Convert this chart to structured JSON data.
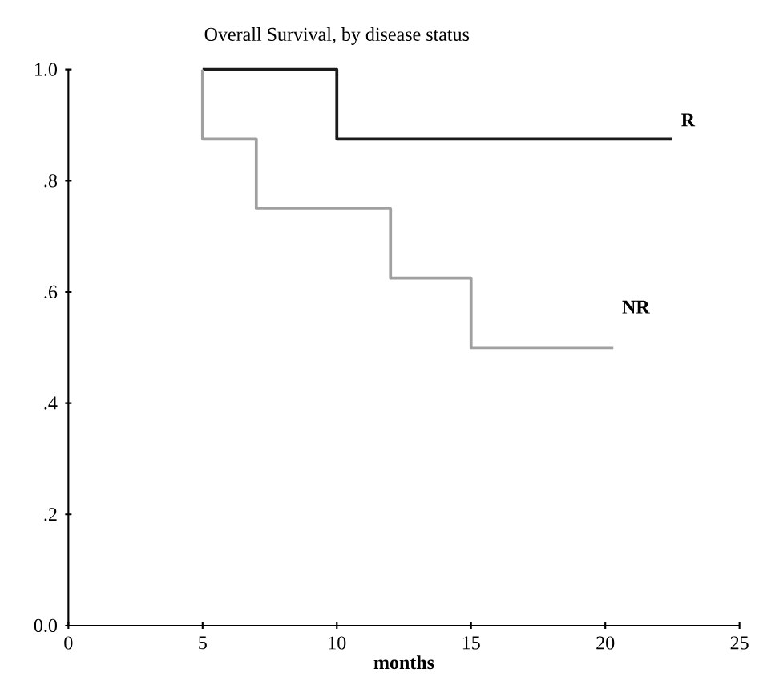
{
  "chart_data": {
    "type": "step",
    "title": "Overall Survival, by disease status",
    "xlabel": "months",
    "xlim": [
      0,
      25
    ],
    "xticks": [
      0,
      5,
      10,
      15,
      20,
      25
    ],
    "ylim": [
      0,
      1
    ],
    "yticks": [
      {
        "value": 0,
        "label": "0.0"
      },
      {
        "value": 0.2,
        "label": ".2"
      },
      {
        "value": 0.4,
        "label": ".4"
      },
      {
        "value": 0.6,
        "label": ".6"
      },
      {
        "value": 0.8,
        "label": ".8"
      },
      {
        "value": 1,
        "label": "1.0"
      }
    ],
    "series": [
      {
        "name": "R",
        "color": "#1a1a1a",
        "x": [
          5,
          10,
          22.5
        ],
        "values": [
          1,
          0.875,
          0.875
        ]
      },
      {
        "name": "NR",
        "color": "#a0a0a0",
        "x": [
          5,
          5,
          7,
          12,
          15,
          20.3
        ],
        "values": [
          1,
          0.875,
          0.75,
          0.625,
          0.5,
          0.5
        ]
      }
    ]
  }
}
